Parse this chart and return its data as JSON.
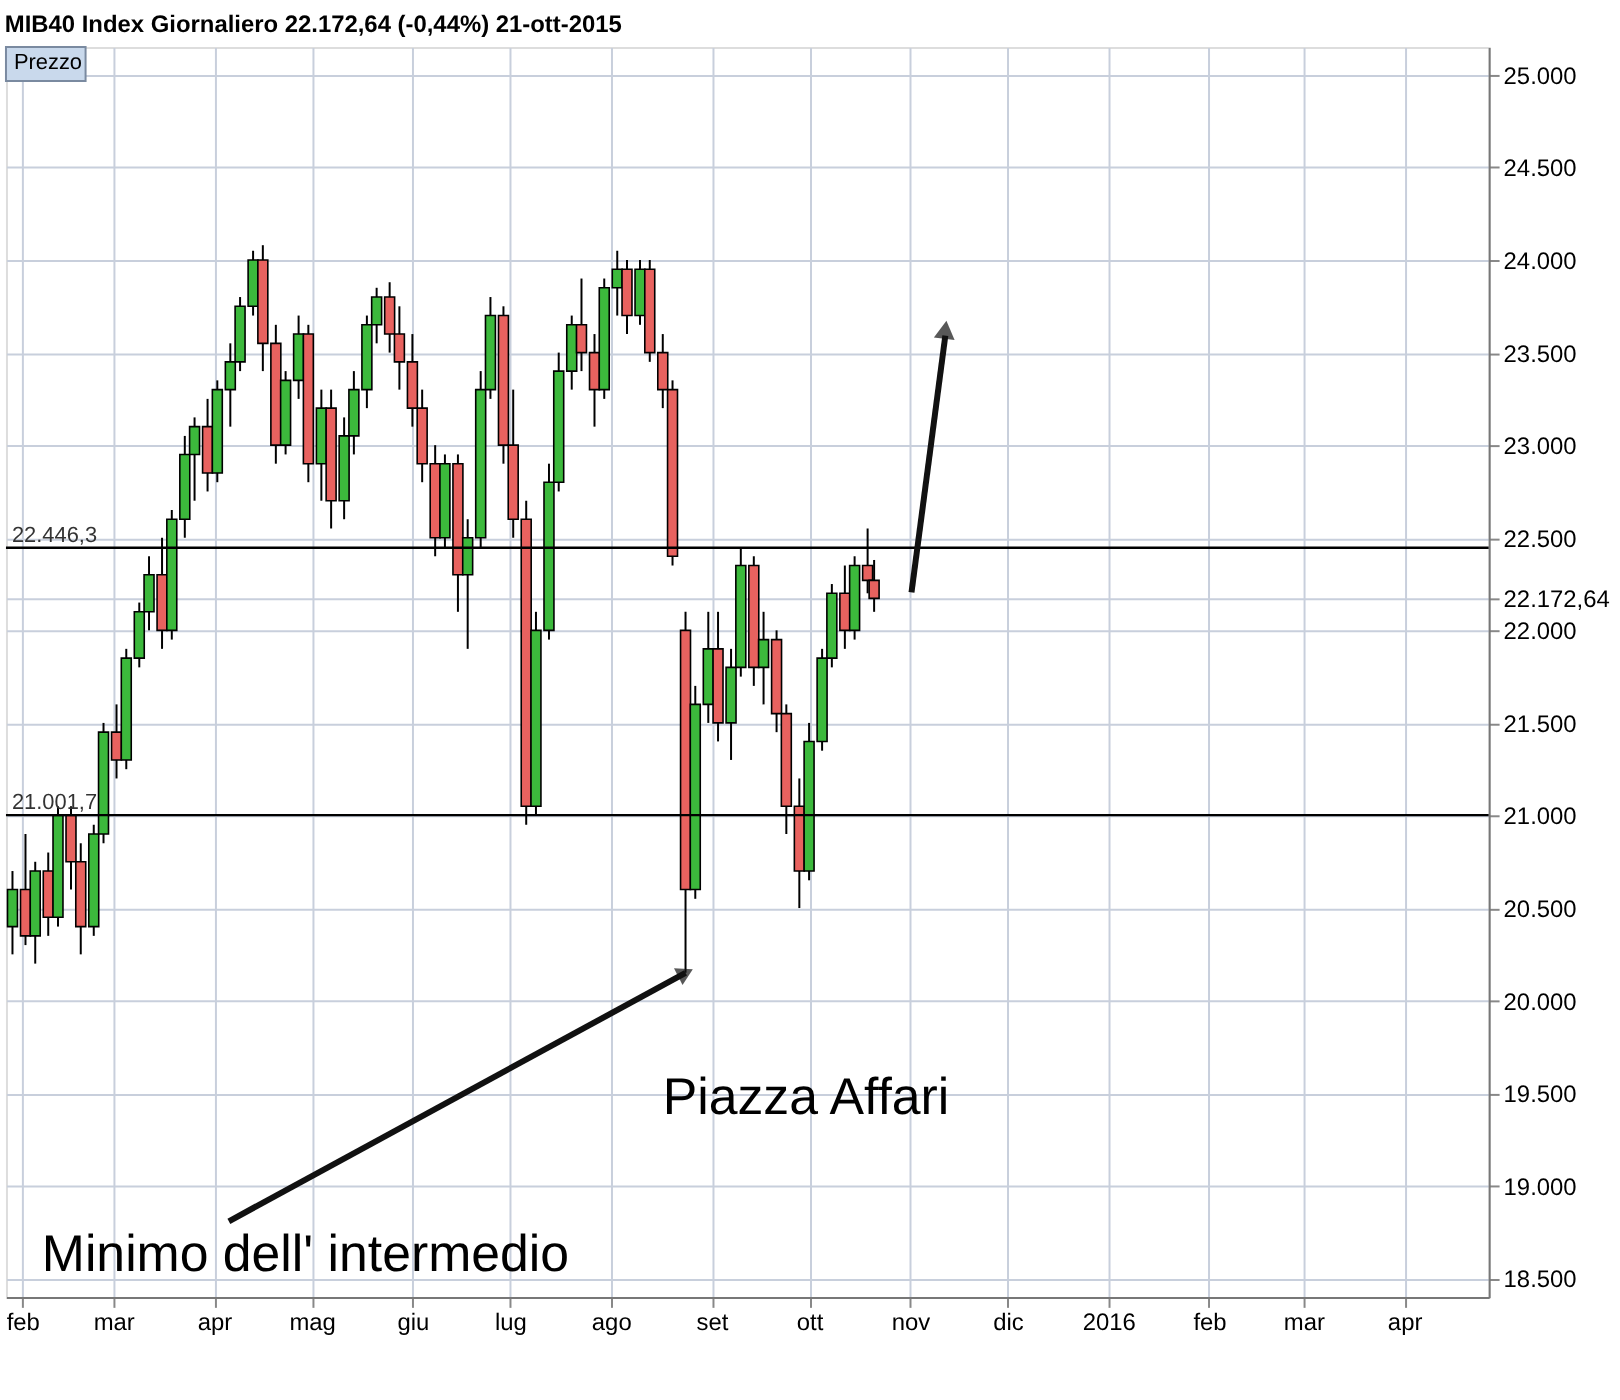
{
  "chart_data": {
    "type": "candlestick",
    "title": "MIB40 Index   Giornaliero   22.172,64 (-0,44%)   21-ott-2015",
    "x": [
      "2015-01-29",
      "2015-02-02",
      "2015-02-05",
      "2015-02-09",
      "2015-02-12",
      "2015-02-16",
      "2015-02-19",
      "2015-02-23",
      "2015-02-26",
      "2015-03-02",
      "2015-03-05",
      "2015-03-09",
      "2015-03-12",
      "2015-03-16",
      "2015-03-19",
      "2015-03-23",
      "2015-03-26",
      "2015-03-30",
      "2015-04-02",
      "2015-04-06",
      "2015-04-09",
      "2015-04-13",
      "2015-04-16",
      "2015-04-20",
      "2015-04-23",
      "2015-04-27",
      "2015-04-30",
      "2015-05-04",
      "2015-05-07",
      "2015-05-11",
      "2015-05-14",
      "2015-05-18",
      "2015-05-21",
      "2015-05-25",
      "2015-05-28",
      "2015-06-01",
      "2015-06-04",
      "2015-06-08",
      "2015-06-11",
      "2015-06-15",
      "2015-06-18",
      "2015-06-22",
      "2015-06-25",
      "2015-06-29",
      "2015-07-02",
      "2015-07-06",
      "2015-07-09",
      "2015-07-13",
      "2015-07-16",
      "2015-07-20",
      "2015-07-23",
      "2015-07-27",
      "2015-07-30",
      "2015-08-03",
      "2015-08-06",
      "2015-08-10",
      "2015-08-13",
      "2015-08-17",
      "2015-08-20",
      "2015-08-24",
      "2015-08-27",
      "2015-08-31",
      "2015-09-03",
      "2015-09-07",
      "2015-09-10",
      "2015-09-14",
      "2015-09-17",
      "2015-09-21",
      "2015-09-24",
      "2015-09-28",
      "2015-10-01",
      "2015-10-05",
      "2015-10-08",
      "2015-10-12",
      "2015-10-15",
      "2015-10-19",
      "2015-10-21"
    ],
    "ohlc": [
      [
        20400,
        20700,
        20250,
        20600
      ],
      [
        20600,
        20900,
        20300,
        20350
      ],
      [
        20350,
        20750,
        20200,
        20700
      ],
      [
        20700,
        20800,
        20350,
        20450
      ],
      [
        20450,
        21050,
        20400,
        21000
      ],
      [
        21000,
        21050,
        20600,
        20750
      ],
      [
        20750,
        20850,
        20250,
        20400
      ],
      [
        20400,
        20950,
        20350,
        20900
      ],
      [
        20900,
        21500,
        20850,
        21450
      ],
      [
        21450,
        21600,
        21200,
        21300
      ],
      [
        21300,
        21900,
        21250,
        21850
      ],
      [
        21850,
        22150,
        21800,
        22100
      ],
      [
        22100,
        22400,
        22000,
        22300
      ],
      [
        22300,
        22500,
        21900,
        22000
      ],
      [
        22000,
        22650,
        21950,
        22600
      ],
      [
        22600,
        23050,
        22500,
        22950
      ],
      [
        22950,
        23150,
        22700,
        23100
      ],
      [
        23100,
        23250,
        22750,
        22850
      ],
      [
        22850,
        23350,
        22800,
        23300
      ],
      [
        23300,
        23550,
        23100,
        23450
      ],
      [
        23450,
        23800,
        23400,
        23750
      ],
      [
        23750,
        24050,
        23700,
        24000
      ],
      [
        24000,
        24080,
        23400,
        23550
      ],
      [
        23550,
        23650,
        22900,
        23000
      ],
      [
        23000,
        23400,
        22950,
        23350
      ],
      [
        23350,
        23700,
        23250,
        23600
      ],
      [
        23600,
        23650,
        22800,
        22900
      ],
      [
        22900,
        23300,
        22700,
        23200
      ],
      [
        23200,
        23300,
        22550,
        22700
      ],
      [
        22700,
        23150,
        22600,
        23050
      ],
      [
        23050,
        23400,
        22950,
        23300
      ],
      [
        23300,
        23700,
        23200,
        23650
      ],
      [
        23650,
        23850,
        23550,
        23800
      ],
      [
        23800,
        23880,
        23500,
        23600
      ],
      [
        23600,
        23750,
        23300,
        23450
      ],
      [
        23450,
        23600,
        23100,
        23200
      ],
      [
        23200,
        23300,
        22800,
        22900
      ],
      [
        22900,
        23000,
        22400,
        22500
      ],
      [
        22500,
        22950,
        22450,
        22900
      ],
      [
        22900,
        22950,
        22100,
        22300
      ],
      [
        22300,
        22600,
        21900,
        22500
      ],
      [
        22500,
        23400,
        22450,
        23300
      ],
      [
        23300,
        23800,
        23250,
        23700
      ],
      [
        23700,
        23750,
        22900,
        23000
      ],
      [
        23000,
        23300,
        22500,
        22600
      ],
      [
        22600,
        22700,
        20950,
        21050
      ],
      [
        21050,
        22100,
        21000,
        22000
      ],
      [
        22000,
        22900,
        21950,
        22800
      ],
      [
        22800,
        23500,
        22750,
        23400
      ],
      [
        23400,
        23700,
        23300,
        23650
      ],
      [
        23650,
        23900,
        23400,
        23500
      ],
      [
        23500,
        23600,
        23100,
        23300
      ],
      [
        23300,
        23900,
        23250,
        23850
      ],
      [
        23850,
        24050,
        23700,
        23950
      ],
      [
        23950,
        24000,
        23600,
        23700
      ],
      [
        23700,
        24000,
        23650,
        23950
      ],
      [
        23950,
        24000,
        23450,
        23500
      ],
      [
        23500,
        23600,
        23200,
        23300
      ],
      [
        23300,
        23350,
        22350,
        22400
      ],
      [
        22000,
        22100,
        20150,
        20600
      ],
      [
        20600,
        21700,
        20550,
        21600
      ],
      [
        21600,
        22100,
        21500,
        21900
      ],
      [
        21900,
        22100,
        21400,
        21500
      ],
      [
        21500,
        21900,
        21300,
        21800
      ],
      [
        21800,
        22450,
        21750,
        22350
      ],
      [
        22350,
        22400,
        21700,
        21800
      ],
      [
        21800,
        22100,
        21600,
        21950
      ],
      [
        21950,
        22000,
        21450,
        21550
      ],
      [
        21550,
        21600,
        20900,
        21050
      ],
      [
        21050,
        21200,
        20500,
        20700
      ],
      [
        20700,
        21500,
        20650,
        21400
      ],
      [
        21400,
        21900,
        21350,
        21850
      ],
      [
        21850,
        22250,
        21800,
        22200
      ],
      [
        22200,
        22350,
        21900,
        22000
      ],
      [
        22000,
        22400,
        21950,
        22350
      ],
      [
        22350,
        22550,
        22200,
        22270
      ],
      [
        22270,
        22380,
        22100,
        22172.64
      ]
    ],
    "colors": [
      "#3cb93c",
      "#e8625f",
      "#3cb93c",
      "#e8625f",
      "#3cb93c",
      "#e8625f",
      "#e8625f",
      "#3cb93c",
      "#3cb93c",
      "#e8625f",
      "#3cb93c",
      "#3cb93c",
      "#3cb93c",
      "#e8625f",
      "#3cb93c",
      "#3cb93c",
      "#3cb93c",
      "#e8625f",
      "#3cb93c",
      "#3cb93c",
      "#3cb93c",
      "#3cb93c",
      "#e8625f",
      "#e8625f",
      "#3cb93c",
      "#3cb93c",
      "#e8625f",
      "#3cb93c",
      "#e8625f",
      "#3cb93c",
      "#3cb93c",
      "#3cb93c",
      "#3cb93c",
      "#e8625f",
      "#e8625f",
      "#e8625f",
      "#e8625f",
      "#e8625f",
      "#3cb93c",
      "#e8625f",
      "#3cb93c",
      "#3cb93c",
      "#3cb93c",
      "#e8625f",
      "#e8625f",
      "#e8625f",
      "#3cb93c",
      "#3cb93c",
      "#3cb93c",
      "#3cb93c",
      "#e8625f",
      "#e8625f",
      "#3cb93c",
      "#3cb93c",
      "#e8625f",
      "#3cb93c",
      "#e8625f",
      "#e8625f",
      "#e8625f",
      "#e8625f",
      "#3cb93c",
      "#3cb93c",
      "#e8625f",
      "#3cb93c",
      "#3cb93c",
      "#e8625f",
      "#3cb93c",
      "#e8625f",
      "#e8625f",
      "#e8625f",
      "#3cb93c",
      "#3cb93c",
      "#3cb93c",
      "#e8625f",
      "#3cb93c",
      "#e8625f",
      "#e8625f"
    ],
    "xlim": [
      "2015-01-27",
      "2016-04-27"
    ],
    "xticks": [
      {
        "value": "2015-02-01",
        "label": "feb"
      },
      {
        "value": "2015-03-01",
        "label": "mar"
      },
      {
        "value": "2015-04-01",
        "label": "apr"
      },
      {
        "value": "2015-05-01",
        "label": "mag"
      },
      {
        "value": "2015-06-01",
        "label": "giu"
      },
      {
        "value": "2015-07-01",
        "label": "lug"
      },
      {
        "value": "2015-08-01",
        "label": "ago"
      },
      {
        "value": "2015-09-01",
        "label": "set"
      },
      {
        "value": "2015-10-01",
        "label": "ott"
      },
      {
        "value": "2015-11-01",
        "label": "nov"
      },
      {
        "value": "2015-12-01",
        "label": "dic"
      },
      {
        "value": "2016-01-01",
        "label": "2016"
      },
      {
        "value": "2016-02-01",
        "label": "feb"
      },
      {
        "value": "2016-03-01",
        "label": "mar"
      },
      {
        "value": "2016-04-01",
        "label": "apr"
      }
    ],
    "ylim": [
      18400,
      25150
    ],
    "yticks": [
      {
        "value": 18500,
        "label": "18.500"
      },
      {
        "value": 19000,
        "label": "19.000"
      },
      {
        "value": 19500,
        "label": "19.500"
      },
      {
        "value": 20000,
        "label": "20.000"
      },
      {
        "value": 20500,
        "label": "20.500"
      },
      {
        "value": 21000,
        "label": "21.000"
      },
      {
        "value": 21500,
        "label": "21.500"
      },
      {
        "value": 22000,
        "label": "22.000"
      },
      {
        "value": 22172.64,
        "label": "22.172,64"
      },
      {
        "value": 22500,
        "label": "22.500"
      },
      {
        "value": 23000,
        "label": "23.000"
      },
      {
        "value": 23500,
        "label": "23.500"
      },
      {
        "value": 24000,
        "label": "24.000"
      },
      {
        "value": 24500,
        "label": "24.500"
      },
      {
        "value": 25000,
        "label": "25.000"
      }
    ],
    "ref_lines": [
      {
        "axis": "y",
        "value": 22446.3,
        "label": "22.446,3",
        "color": "#000000"
      },
      {
        "axis": "y",
        "value": 21001.7,
        "label": "21.001,7",
        "color": "#000000"
      }
    ],
    "annotations": [
      "Prezzo",
      "Piazza Affari",
      {
        "text": "Minimo dell' intermedio",
        "x": "2015-08-24",
        "y": 20150
      }
    ],
    "grid": true
  }
}
